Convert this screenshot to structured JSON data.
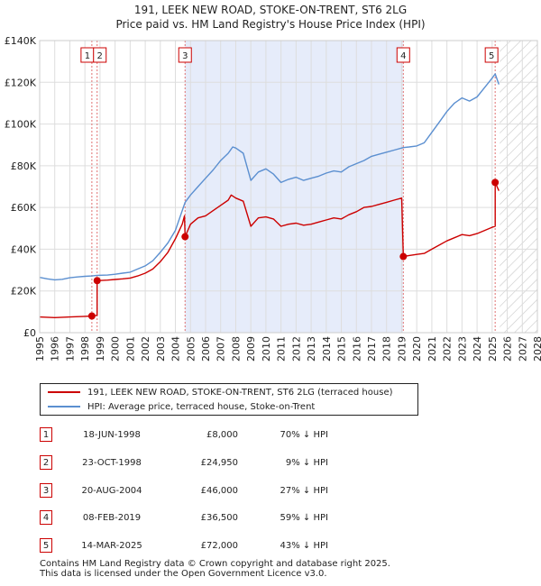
{
  "title_line1": "191, LEEK NEW ROAD, STOKE-ON-TRENT, ST6 2LG",
  "title_line2": "Price paid vs. HM Land Registry's House Price Index (HPI)",
  "chart_data": {
    "type": "line",
    "xlim": [
      1995,
      2028
    ],
    "ylim": [
      0,
      140000
    ],
    "x_ticks": [
      1995,
      1996,
      1997,
      1998,
      1999,
      2000,
      2001,
      2002,
      2003,
      2004,
      2005,
      2006,
      2007,
      2008,
      2009,
      2010,
      2011,
      2012,
      2013,
      2014,
      2015,
      2016,
      2017,
      2018,
      2019,
      2020,
      2021,
      2022,
      2023,
      2024,
      2025,
      2026,
      2027,
      2028
    ],
    "y_ticks": [
      {
        "value": 0,
        "label": "£0"
      },
      {
        "value": 20000,
        "label": "£20K"
      },
      {
        "value": 40000,
        "label": "£40K"
      },
      {
        "value": 60000,
        "label": "£60K"
      },
      {
        "value": 80000,
        "label": "£80K"
      },
      {
        "value": 100000,
        "label": "£100K"
      },
      {
        "value": 120000,
        "label": "£120K"
      },
      {
        "value": 140000,
        "label": "£140K"
      }
    ],
    "shaded_period": [
      2004.64,
      2019.11
    ],
    "future_hatch_start": 2025.5,
    "series": [
      {
        "name": "191, LEEK NEW ROAD, STOKE-ON-TRENT, ST6 2LG (terraced house)",
        "color": "#cc0000",
        "points": [
          [
            1995.0,
            7500
          ],
          [
            1996.0,
            7200
          ],
          [
            1997.0,
            7500
          ],
          [
            1998.0,
            7800
          ],
          [
            1998.46,
            8000
          ],
          [
            1998.6,
            8200
          ],
          [
            1998.81,
            8300
          ],
          [
            1998.81,
            24950
          ],
          [
            1999.5,
            25200
          ],
          [
            2000.0,
            25500
          ],
          [
            2000.5,
            25800
          ],
          [
            2001.0,
            26200
          ],
          [
            2001.5,
            27200
          ],
          [
            2002.0,
            28500
          ],
          [
            2002.5,
            30500
          ],
          [
            2003.0,
            34000
          ],
          [
            2003.5,
            38500
          ],
          [
            2004.0,
            45000
          ],
          [
            2004.45,
            52000
          ],
          [
            2004.6,
            56000
          ],
          [
            2004.64,
            46000
          ],
          [
            2005.0,
            52000
          ],
          [
            2005.5,
            55000
          ],
          [
            2006.0,
            56000
          ],
          [
            2006.5,
            58500
          ],
          [
            2007.0,
            61000
          ],
          [
            2007.5,
            63500
          ],
          [
            2007.7,
            66000
          ],
          [
            2008.0,
            64500
          ],
          [
            2008.5,
            63000
          ],
          [
            2009.0,
            51000
          ],
          [
            2009.5,
            55000
          ],
          [
            2010.0,
            55500
          ],
          [
            2010.5,
            54500
          ],
          [
            2011.0,
            51000
          ],
          [
            2011.5,
            52000
          ],
          [
            2012.0,
            52500
          ],
          [
            2012.5,
            51500
          ],
          [
            2013.0,
            52000
          ],
          [
            2013.5,
            53000
          ],
          [
            2014.0,
            54000
          ],
          [
            2014.5,
            55000
          ],
          [
            2015.0,
            54500
          ],
          [
            2015.5,
            56500
          ],
          [
            2016.0,
            58000
          ],
          [
            2016.5,
            60000
          ],
          [
            2017.0,
            60500
          ],
          [
            2017.5,
            61500
          ],
          [
            2018.0,
            62500
          ],
          [
            2018.5,
            63500
          ],
          [
            2019.0,
            64500
          ],
          [
            2019.11,
            36500
          ],
          [
            2019.5,
            37000
          ],
          [
            2020.0,
            37500
          ],
          [
            2020.5,
            38000
          ],
          [
            2021.0,
            40000
          ],
          [
            2021.5,
            42000
          ],
          [
            2022.0,
            44000
          ],
          [
            2022.5,
            45500
          ],
          [
            2023.0,
            47000
          ],
          [
            2023.5,
            46500
          ],
          [
            2024.0,
            47500
          ],
          [
            2024.5,
            49000
          ],
          [
            2025.0,
            50500
          ],
          [
            2025.2,
            51000
          ],
          [
            2025.2,
            72000
          ],
          [
            2025.45,
            68000
          ]
        ]
      },
      {
        "name": "HPI: Average price, terraced house, Stoke-on-Trent",
        "color": "#5b8fd0",
        "points": [
          [
            1995.0,
            26500
          ],
          [
            1995.5,
            25800
          ],
          [
            1996.0,
            25300
          ],
          [
            1996.5,
            25600
          ],
          [
            1997.0,
            26300
          ],
          [
            1997.5,
            26700
          ],
          [
            1998.0,
            27000
          ],
          [
            1998.46,
            27200
          ],
          [
            1998.81,
            27500
          ],
          [
            1999.5,
            27600
          ],
          [
            2000.0,
            28000
          ],
          [
            2000.5,
            28500
          ],
          [
            2001.0,
            29000
          ],
          [
            2001.5,
            30500
          ],
          [
            2002.0,
            32000
          ],
          [
            2002.5,
            34500
          ],
          [
            2003.0,
            38500
          ],
          [
            2003.5,
            43000
          ],
          [
            2004.0,
            49000
          ],
          [
            2004.64,
            62500
          ],
          [
            2005.0,
            66000
          ],
          [
            2005.5,
            70000
          ],
          [
            2006.0,
            74000
          ],
          [
            2006.5,
            78000
          ],
          [
            2007.0,
            82500
          ],
          [
            2007.5,
            86000
          ],
          [
            2007.8,
            89000
          ],
          [
            2008.0,
            88500
          ],
          [
            2008.5,
            86000
          ],
          [
            2009.0,
            73000
          ],
          [
            2009.5,
            77000
          ],
          [
            2010.0,
            78500
          ],
          [
            2010.5,
            76000
          ],
          [
            2011.0,
            72000
          ],
          [
            2011.5,
            73500
          ],
          [
            2012.0,
            74500
          ],
          [
            2012.5,
            73000
          ],
          [
            2013.0,
            74000
          ],
          [
            2013.5,
            75000
          ],
          [
            2014.0,
            76500
          ],
          [
            2014.5,
            77500
          ],
          [
            2015.0,
            77000
          ],
          [
            2015.5,
            79500
          ],
          [
            2016.0,
            81000
          ],
          [
            2016.5,
            82500
          ],
          [
            2017.0,
            84500
          ],
          [
            2017.5,
            85500
          ],
          [
            2018.0,
            86500
          ],
          [
            2018.5,
            87500
          ],
          [
            2019.0,
            88500
          ],
          [
            2019.11,
            88700
          ],
          [
            2019.5,
            89000
          ],
          [
            2020.0,
            89500
          ],
          [
            2020.5,
            91000
          ],
          [
            2021.0,
            96000
          ],
          [
            2021.5,
            101000
          ],
          [
            2022.0,
            106000
          ],
          [
            2022.5,
            110000
          ],
          [
            2023.0,
            112500
          ],
          [
            2023.5,
            111000
          ],
          [
            2024.0,
            113000
          ],
          [
            2024.5,
            117500
          ],
          [
            2025.0,
            122000
          ],
          [
            2025.2,
            124000
          ],
          [
            2025.45,
            119000
          ]
        ]
      }
    ],
    "markers": [
      {
        "label": "1",
        "x": 1998.46,
        "y": 8000
      },
      {
        "label": "2",
        "x": 1998.81,
        "y": 24950
      },
      {
        "label": "3",
        "x": 2004.64,
        "y": 46000
      },
      {
        "label": "4",
        "x": 2019.11,
        "y": 36500
      },
      {
        "label": "5",
        "x": 2025.2,
        "y": 72000
      }
    ]
  },
  "legend": {
    "items": [
      {
        "label": "191, LEEK NEW ROAD, STOKE-ON-TRENT, ST6 2LG (terraced house)",
        "color": "#cc0000"
      },
      {
        "label": "HPI: Average price, terraced house, Stoke-on-Trent",
        "color": "#5b8fd0"
      }
    ]
  },
  "transactions": [
    {
      "num": "1",
      "date": "18-JUN-1998",
      "price": "£8,000",
      "hpi": "70% ↓ HPI"
    },
    {
      "num": "2",
      "date": "23-OCT-1998",
      "price": "£24,950",
      "hpi": "9% ↓ HPI"
    },
    {
      "num": "3",
      "date": "20-AUG-2004",
      "price": "£46,000",
      "hpi": "27% ↓ HPI"
    },
    {
      "num": "4",
      "date": "08-FEB-2019",
      "price": "£36,500",
      "hpi": "59% ↓ HPI"
    },
    {
      "num": "5",
      "date": "14-MAR-2025",
      "price": "£72,000",
      "hpi": "43% ↓ HPI"
    }
  ],
  "footer": {
    "line1": "Contains HM Land Registry data © Crown copyright and database right 2025.",
    "line2": "This data is licensed under the Open Government Licence v3.0."
  }
}
